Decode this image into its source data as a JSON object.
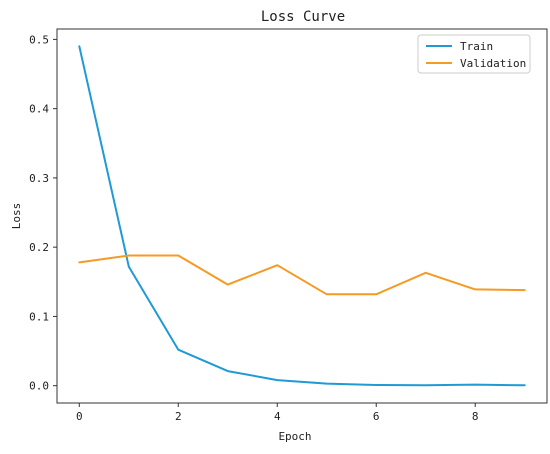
{
  "chart_data": {
    "type": "line",
    "title": "Loss Curve",
    "xlabel": "Epoch",
    "ylabel": "Loss",
    "x": [
      0,
      1,
      2,
      3,
      4,
      5,
      6,
      7,
      8,
      9
    ],
    "series": [
      {
        "name": "Train",
        "color": "#1f9ad6",
        "values": [
          0.49,
          0.172,
          0.052,
          0.021,
          0.008,
          0.003,
          0.001,
          0.0005,
          0.0015,
          0.0005
        ]
      },
      {
        "name": "Validation",
        "color": "#f59a23",
        "values": [
          0.178,
          0.188,
          0.188,
          0.146,
          0.174,
          0.132,
          0.132,
          0.163,
          0.139,
          0.138
        ]
      }
    ],
    "xlim": [
      -0.45,
      9.45
    ],
    "ylim": [
      -0.025,
      0.515
    ],
    "xticks": [
      0,
      2,
      4,
      6,
      8
    ],
    "yticks": [
      0.0,
      0.1,
      0.2,
      0.3,
      0.4,
      0.5
    ],
    "xtick_labels": [
      "0",
      "2",
      "4",
      "6",
      "8"
    ],
    "ytick_labels": [
      "0.0",
      "0.1",
      "0.2",
      "0.3",
      "0.4",
      "0.5"
    ],
    "grid": false,
    "legend_position": "top-right"
  }
}
